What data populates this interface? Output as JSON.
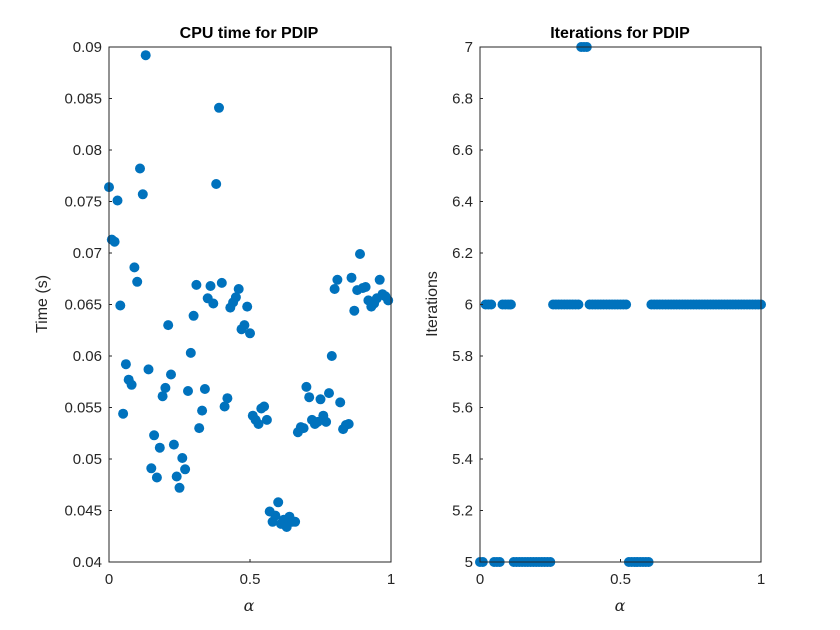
{
  "chart_data": [
    {
      "type": "scatter",
      "title": "CPU time for PDIP",
      "xlabel": "α",
      "ylabel": "Time (s)",
      "xlim": [
        0,
        1
      ],
      "ylim": [
        0.04,
        0.09
      ],
      "xticks": [
        "0",
        "0.5",
        "1"
      ],
      "yticks": [
        "0.04",
        "0.045",
        "0.05",
        "0.055",
        "0.06",
        "0.065",
        "0.07",
        "0.075",
        "0.08",
        "0.085",
        "0.09"
      ],
      "color": "#0072BD",
      "grid": false,
      "points": [
        [
          0.0,
          0.0764
        ],
        [
          0.01,
          0.0713
        ],
        [
          0.02,
          0.0711
        ],
        [
          0.03,
          0.0751
        ],
        [
          0.04,
          0.0649
        ],
        [
          0.05,
          0.0544
        ],
        [
          0.06,
          0.0592
        ],
        [
          0.07,
          0.0577
        ],
        [
          0.08,
          0.0572
        ],
        [
          0.09,
          0.0686
        ],
        [
          0.1,
          0.0672
        ],
        [
          0.11,
          0.0782
        ],
        [
          0.12,
          0.0757
        ],
        [
          0.13,
          0.0892
        ],
        [
          0.14,
          0.0587
        ],
        [
          0.15,
          0.0491
        ],
        [
          0.16,
          0.0523
        ],
        [
          0.17,
          0.0482
        ],
        [
          0.18,
          0.0511
        ],
        [
          0.19,
          0.0561
        ],
        [
          0.2,
          0.0569
        ],
        [
          0.21,
          0.063
        ],
        [
          0.22,
          0.0582
        ],
        [
          0.23,
          0.0514
        ],
        [
          0.24,
          0.0483
        ],
        [
          0.25,
          0.0472
        ],
        [
          0.26,
          0.0501
        ],
        [
          0.27,
          0.049
        ],
        [
          0.28,
          0.0566
        ],
        [
          0.29,
          0.0603
        ],
        [
          0.3,
          0.0639
        ],
        [
          0.31,
          0.0669
        ],
        [
          0.32,
          0.053
        ],
        [
          0.33,
          0.0547
        ],
        [
          0.34,
          0.0568
        ],
        [
          0.35,
          0.0656
        ],
        [
          0.36,
          0.0668
        ],
        [
          0.37,
          0.0651
        ],
        [
          0.38,
          0.0767
        ],
        [
          0.39,
          0.0841
        ],
        [
          0.4,
          0.0671
        ],
        [
          0.41,
          0.0551
        ],
        [
          0.42,
          0.0559
        ],
        [
          0.43,
          0.0647
        ],
        [
          0.44,
          0.0652
        ],
        [
          0.45,
          0.0657
        ],
        [
          0.46,
          0.0665
        ],
        [
          0.47,
          0.0626
        ],
        [
          0.48,
          0.063
        ],
        [
          0.49,
          0.0648
        ],
        [
          0.5,
          0.0622
        ],
        [
          0.51,
          0.0542
        ],
        [
          0.52,
          0.0538
        ],
        [
          0.53,
          0.0534
        ],
        [
          0.54,
          0.0549
        ],
        [
          0.55,
          0.0551
        ],
        [
          0.56,
          0.0538
        ],
        [
          0.57,
          0.0449
        ],
        [
          0.58,
          0.0439
        ],
        [
          0.59,
          0.0445
        ],
        [
          0.6,
          0.0458
        ],
        [
          0.61,
          0.0437
        ],
        [
          0.62,
          0.0441
        ],
        [
          0.63,
          0.0434
        ],
        [
          0.64,
          0.0444
        ],
        [
          0.65,
          0.0439
        ],
        [
          0.66,
          0.0439
        ],
        [
          0.67,
          0.0526
        ],
        [
          0.68,
          0.0531
        ],
        [
          0.69,
          0.053
        ],
        [
          0.7,
          0.057
        ],
        [
          0.71,
          0.056
        ],
        [
          0.72,
          0.0538
        ],
        [
          0.73,
          0.0534
        ],
        [
          0.74,
          0.0536
        ],
        [
          0.75,
          0.0558
        ],
        [
          0.76,
          0.0542
        ],
        [
          0.77,
          0.0536
        ],
        [
          0.78,
          0.0564
        ],
        [
          0.79,
          0.06
        ],
        [
          0.8,
          0.0665
        ],
        [
          0.81,
          0.0674
        ],
        [
          0.82,
          0.0555
        ],
        [
          0.83,
          0.0529
        ],
        [
          0.84,
          0.0533
        ],
        [
          0.85,
          0.0534
        ],
        [
          0.86,
          0.0676
        ],
        [
          0.87,
          0.0644
        ],
        [
          0.88,
          0.0664
        ],
        [
          0.89,
          0.0699
        ],
        [
          0.9,
          0.0666
        ],
        [
          0.91,
          0.0667
        ],
        [
          0.92,
          0.0654
        ],
        [
          0.93,
          0.0648
        ],
        [
          0.94,
          0.0651
        ],
        [
          0.95,
          0.0656
        ],
        [
          0.96,
          0.0674
        ],
        [
          0.97,
          0.066
        ],
        [
          0.98,
          0.0658
        ],
        [
          0.99,
          0.0654
        ]
      ]
    },
    {
      "type": "scatter",
      "title": "Iterations for PDIP",
      "xlabel": "α",
      "ylabel": "Iterations",
      "xlim": [
        0,
        1
      ],
      "ylim": [
        5,
        7
      ],
      "xticks": [
        "0",
        "0.5",
        "1"
      ],
      "yticks": [
        "5",
        "5.2",
        "5.4",
        "5.6",
        "5.8",
        "6",
        "6.2",
        "6.4",
        "6.6",
        "6.8",
        "7"
      ],
      "color": "#0072BD",
      "grid": false,
      "x": [
        0,
        0.01,
        0.02,
        0.03,
        0.04,
        0.05,
        0.06,
        0.07,
        0.08,
        0.09,
        0.1,
        0.11,
        0.12,
        0.13,
        0.14,
        0.15,
        0.16,
        0.17,
        0.18,
        0.19,
        0.2,
        0.21,
        0.22,
        0.23,
        0.24,
        0.25,
        0.26,
        0.27,
        0.28,
        0.29,
        0.3,
        0.31,
        0.32,
        0.33,
        0.34,
        0.35,
        0.36,
        0.37,
        0.38,
        0.39,
        0.4,
        0.41,
        0.42,
        0.43,
        0.44,
        0.45,
        0.46,
        0.47,
        0.48,
        0.49,
        0.5,
        0.51,
        0.52,
        0.53,
        0.54,
        0.55,
        0.56,
        0.57,
        0.58,
        0.59,
        0.6,
        0.61,
        0.62,
        0.63,
        0.64,
        0.65,
        0.66,
        0.67,
        0.68,
        0.69,
        0.7,
        0.71,
        0.72,
        0.73,
        0.74,
        0.75,
        0.76,
        0.77,
        0.78,
        0.79,
        0.8,
        0.81,
        0.82,
        0.83,
        0.84,
        0.85,
        0.86,
        0.87,
        0.88,
        0.89,
        0.9,
        0.91,
        0.92,
        0.93,
        0.94,
        0.95,
        0.96,
        0.97,
        0.98,
        0.99,
        1
      ],
      "y": [
        5,
        5,
        6,
        6,
        6,
        5,
        5,
        5,
        6,
        6,
        6,
        6,
        5,
        5,
        5,
        5,
        5,
        5,
        5,
        5,
        5,
        5,
        5,
        5,
        5,
        5,
        6,
        6,
        6,
        6,
        6,
        6,
        6,
        6,
        6,
        6,
        7,
        7,
        7,
        6,
        6,
        6,
        6,
        6,
        6,
        6,
        6,
        6,
        6,
        6,
        6,
        6,
        6,
        5,
        5,
        5,
        5,
        5,
        5,
        5,
        5,
        6,
        6,
        6,
        6,
        6,
        6,
        6,
        6,
        6,
        6,
        6,
        6,
        6,
        6,
        6,
        6,
        6,
        6,
        6,
        6,
        6,
        6,
        6,
        6,
        6,
        6,
        6,
        6,
        6,
        6,
        6,
        6,
        6,
        6,
        6,
        6,
        6,
        6,
        6,
        6
      ]
    }
  ]
}
